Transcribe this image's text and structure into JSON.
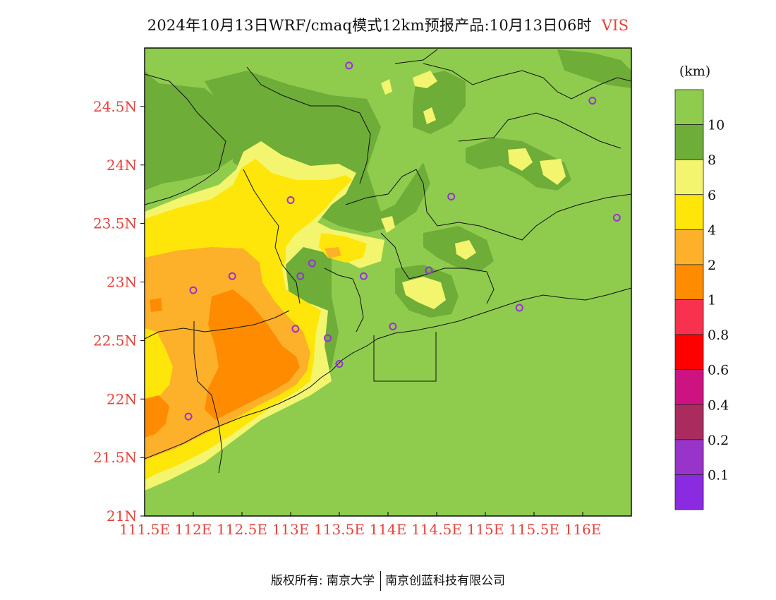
{
  "title": {
    "main": "2024年10月13日WRF/cmaq模式12km预报产品:10月13日06时",
    "variable": "VIS"
  },
  "map": {
    "lon_range": [
      111.5,
      116.5
    ],
    "lat_range": [
      21.0,
      25.0
    ],
    "x_ticks": [
      "111.5E",
      "112E",
      "112.5E",
      "113E",
      "113.5E",
      "114E",
      "114.5E",
      "115E",
      "115.5E",
      "116E"
    ],
    "y_ticks": [
      "21N",
      "21.5N",
      "22N",
      "22.5N",
      "23N",
      "23.5N",
      "24N",
      "24.5N"
    ],
    "tick_label_color": "#e8413c",
    "stations_lonlat": [
      [
        113.6,
        24.85
      ],
      [
        116.1,
        24.55
      ],
      [
        113.0,
        23.7
      ],
      [
        114.65,
        23.73
      ],
      [
        116.35,
        23.55
      ],
      [
        112.4,
        23.05
      ],
      [
        112.0,
        22.93
      ],
      [
        113.1,
        23.05
      ],
      [
        113.22,
        23.16
      ],
      [
        113.75,
        23.05
      ],
      [
        114.42,
        23.1
      ],
      [
        113.05,
        22.6
      ],
      [
        113.38,
        22.52
      ],
      [
        114.05,
        22.62
      ],
      [
        115.35,
        22.78
      ],
      [
        113.5,
        22.3
      ],
      [
        111.95,
        21.85
      ]
    ],
    "station_color": "#9a2fd8"
  },
  "legend": {
    "unit": "(km)",
    "labels": [
      "10",
      "8",
      "6",
      "4",
      "2",
      "1",
      "0.8",
      "0.6",
      "0.4",
      "0.2",
      "0.1"
    ],
    "colors": [
      "#8fcc4e",
      "#6ead38",
      "#f4f56e",
      "#ffe60a",
      "#fdb12a",
      "#ff8c00",
      "#f8314f",
      "#ff0000",
      "#cc1381",
      "#aa2b5e",
      "#9834c9",
      "#8a2be2"
    ]
  },
  "footer": {
    "left": "版权所有: 南京大学",
    "right": "南京创蓝科技有限公司"
  }
}
